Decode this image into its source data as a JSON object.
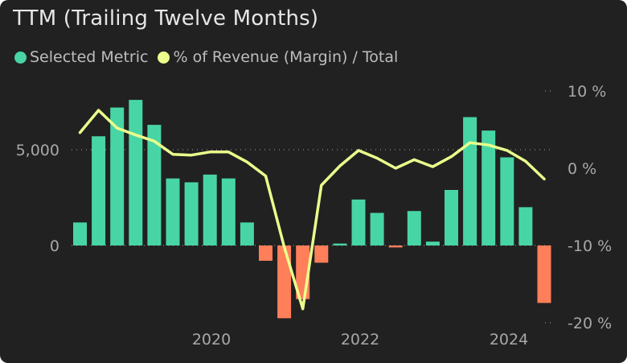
{
  "title": "TTM (Trailing Twelve Months)",
  "legend": [
    {
      "label": "Selected Metric",
      "color": "#48d5a5"
    },
    {
      "label": "% of Revenue (Margin) / Total",
      "color": "#eaff8c"
    }
  ],
  "colors": {
    "positive": "#48d5a5",
    "negative": "#ff7f5a",
    "line": "#eaff8c",
    "background": "#212121"
  },
  "chart_data": {
    "type": "bar",
    "x_ticks": [
      "2020",
      "2022",
      "2024"
    ],
    "left_axis": {
      "ticks": [
        "5,000",
        "0"
      ],
      "tick_values": [
        5000,
        0
      ],
      "ylim": [
        -4000,
        9000
      ]
    },
    "right_axis": {
      "ticks": [
        "10 %",
        "0 %",
        "-10 %",
        "-20 %"
      ],
      "tick_values": [
        10,
        0,
        -10,
        -20
      ],
      "ylim": [
        -20,
        10
      ]
    },
    "series": [
      {
        "name": "Selected Metric",
        "type": "bar",
        "values": [
          1200,
          5700,
          7200,
          7600,
          6300,
          3500,
          3300,
          3700,
          3500,
          1200,
          -800,
          -3800,
          -2800,
          -900,
          100,
          2400,
          1700,
          -100,
          1800,
          200,
          2900,
          6700,
          6000,
          4600,
          2000,
          -3000
        ]
      },
      {
        "name": "% of Revenue (Margin) / Total",
        "type": "line",
        "values": [
          4.6,
          7.5,
          5.2,
          4.3,
          3.5,
          1.8,
          1.7,
          2.1,
          2.1,
          0.8,
          -1.0,
          -10.2,
          -18.2,
          -2.2,
          0.3,
          2.3,
          1.3,
          0.0,
          1.1,
          0.2,
          1.5,
          3.3,
          3.0,
          2.3,
          0.9,
          -1.4
        ]
      }
    ],
    "grid": "dotted reference lines at 5,000 and 0 % and 10 % / -20 % markers"
  }
}
